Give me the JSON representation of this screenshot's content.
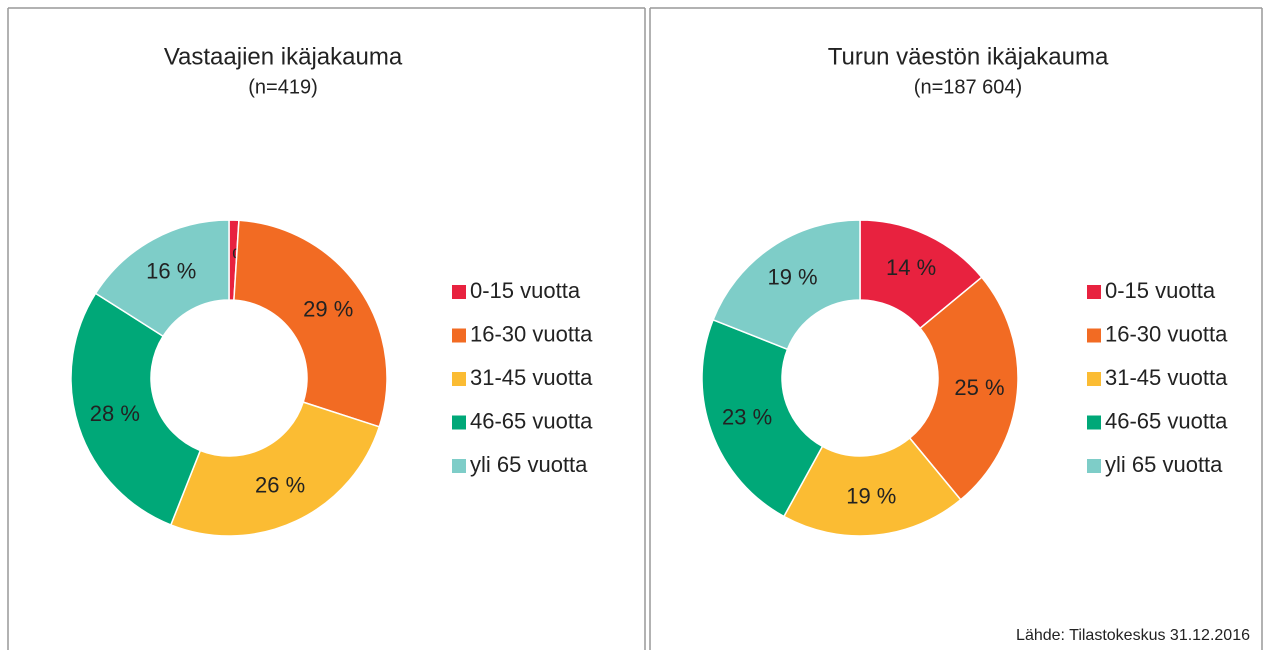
{
  "chart_data": [
    {
      "type": "donut",
      "title": "Vastaajien ikäjakauma",
      "subtitle": "(n=419)",
      "categories": [
        "0-15 vuotta",
        "16-30 vuotta",
        "31-45 vuotta",
        "46-65 vuotta",
        "yli 65 vuotta"
      ],
      "values": [
        1,
        29,
        26,
        28,
        16
      ],
      "value_labels": [
        "1 %",
        "29 %",
        "26 %",
        "28 %",
        "16 %"
      ],
      "colors": [
        "#e8223f",
        "#f26b23",
        "#fbbc33",
        "#00a878",
        "#7ecdc8"
      ]
    },
    {
      "type": "donut",
      "title": "Turun väestön ikäjakauma",
      "subtitle": "(n=187 604)",
      "categories": [
        "0-15 vuotta",
        "16-30 vuotta",
        "31-45 vuotta",
        "46-65 vuotta",
        "yli 65 vuotta"
      ],
      "values": [
        14,
        25,
        19,
        23,
        19
      ],
      "value_labels": [
        "14 %",
        "25 %",
        "19 %",
        "23 %",
        "19 %"
      ],
      "colors": [
        "#e8223f",
        "#f26b23",
        "#fbbc33",
        "#00a878",
        "#7ecdc8"
      ],
      "note": "Lähde: Tilastokeskus 31.12.2016"
    }
  ]
}
